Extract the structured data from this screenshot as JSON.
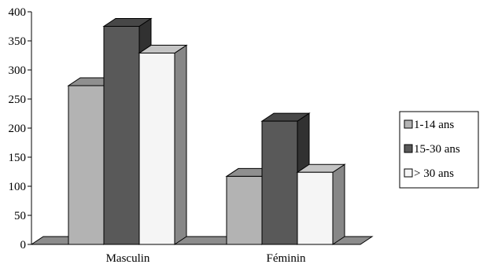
{
  "chart_data": {
    "type": "bar",
    "subtype": "3d-clustered",
    "title": "",
    "xlabel": "",
    "ylabel": "",
    "ylim": [
      0,
      400
    ],
    "yticks": [
      0,
      50,
      100,
      150,
      200,
      250,
      300,
      350,
      400
    ],
    "grid": false,
    "legend_position": "right",
    "categories": [
      "Masculin",
      "Féminin"
    ],
    "series": [
      {
        "name": "1-14 ans",
        "values": [
          273,
          117
        ],
        "color": "#b3b3b3"
      },
      {
        "name": "15-30 ans",
        "values": [
          375,
          212
        ],
        "color": "#595959"
      },
      {
        "name": "> 30 ans",
        "values": [
          329,
          124
        ],
        "color": "#f5f5f5"
      }
    ]
  }
}
